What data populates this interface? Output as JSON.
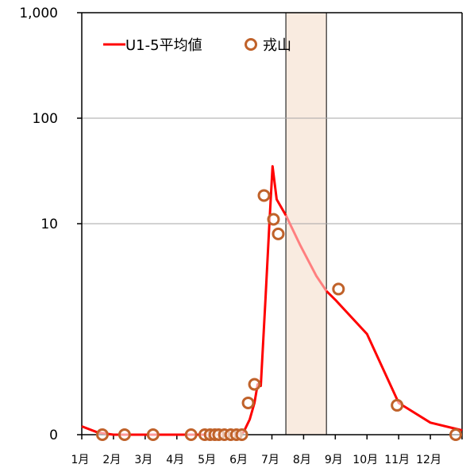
{
  "chart_data": {
    "type": "line",
    "title": "",
    "xlabel": "",
    "ylabel": "",
    "y_scale": "log",
    "ylim": [
      0.1,
      1000
    ],
    "y_ticks": [
      {
        "value": 0.1,
        "label": "0"
      },
      {
        "value": 10,
        "label": "10"
      },
      {
        "value": 100,
        "label": "100"
      },
      {
        "value": 1000,
        "label": "1,000"
      }
    ],
    "x_range_months": [
      1,
      13
    ],
    "x_tick_labels": [
      "1月",
      "2月",
      "3月",
      "4月",
      "5月",
      "6月",
      "7月",
      "8月",
      "9月",
      "10月",
      "11月",
      "12月"
    ],
    "grid": {
      "horizontal": true,
      "vertical": false
    },
    "legend_position": "top-left",
    "shaded_period": {
      "from_month": 7.44,
      "to_month": 8.72,
      "color": "#f9ebe0"
    },
    "series": [
      {
        "name": "U1-5平均値",
        "kind": "line",
        "color": "#ff0000",
        "points": [
          [
            1.0,
            0.12
          ],
          [
            1.5,
            0.105
          ],
          [
            2.0,
            0.1
          ],
          [
            3.0,
            0.1
          ],
          [
            4.0,
            0.1
          ],
          [
            4.5,
            0.1
          ],
          [
            5.0,
            0.1
          ],
          [
            5.5,
            0.1
          ],
          [
            5.9,
            0.1
          ],
          [
            6.1,
            0.105
          ],
          [
            6.3,
            0.14
          ],
          [
            6.45,
            0.2
          ],
          [
            6.55,
            0.3
          ],
          [
            6.65,
            0.29
          ],
          [
            6.8,
            2.0
          ],
          [
            6.92,
            10.0
          ],
          [
            7.02,
            35.0
          ],
          [
            7.15,
            17.0
          ],
          [
            7.44,
            12.0
          ],
          [
            7.9,
            6.2
          ],
          [
            8.4,
            3.2
          ],
          [
            8.72,
            2.3
          ],
          [
            9.0,
            1.9
          ],
          [
            10.0,
            0.9
          ],
          [
            11.0,
            0.2
          ],
          [
            12.0,
            0.13
          ],
          [
            13.0,
            0.11
          ]
        ],
        "faded_segment": {
          "from_month": 7.44,
          "to_month": 8.72,
          "color": "#ff7f7f"
        }
      },
      {
        "name": "戎山",
        "kind": "scatter",
        "color": "#c0622a",
        "points": [
          [
            1.65,
            0.1
          ],
          [
            2.35,
            0.1
          ],
          [
            3.25,
            0.1
          ],
          [
            4.45,
            0.1
          ],
          [
            4.88,
            0.1
          ],
          [
            5.05,
            0.1
          ],
          [
            5.2,
            0.1
          ],
          [
            5.32,
            0.1
          ],
          [
            5.5,
            0.1
          ],
          [
            5.7,
            0.1
          ],
          [
            5.88,
            0.1
          ],
          [
            6.05,
            0.1
          ],
          [
            6.25,
            0.2
          ],
          [
            6.45,
            0.3
          ],
          [
            6.75,
            18.5
          ],
          [
            7.05,
            11.0
          ],
          [
            7.2,
            8.0
          ],
          [
            9.1,
            2.4
          ],
          [
            10.95,
            0.19
          ],
          [
            12.8,
            0.1
          ]
        ]
      }
    ]
  }
}
